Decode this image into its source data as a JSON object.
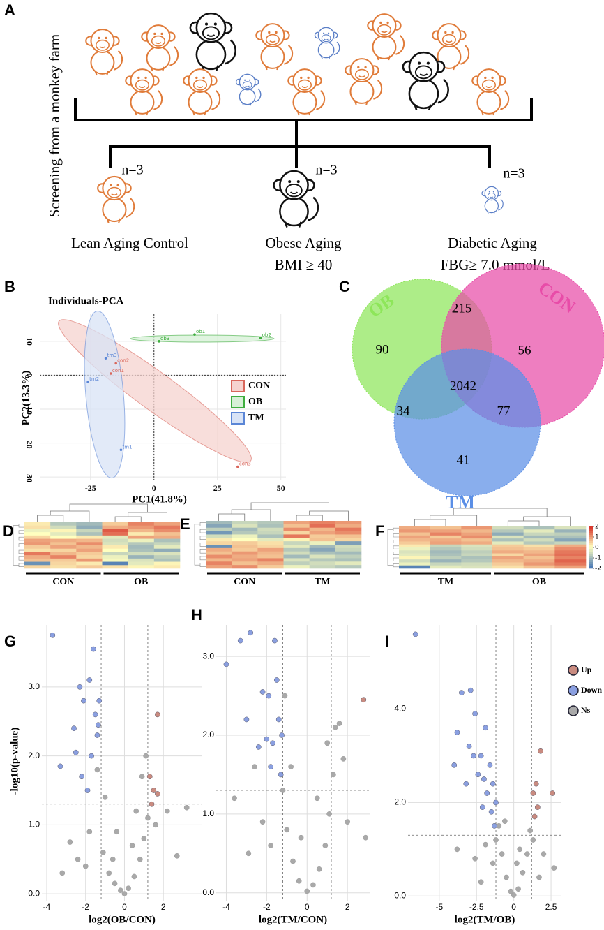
{
  "panel_labels": [
    "A",
    "B",
    "C",
    "D",
    "E",
    "F",
    "G",
    "H",
    "I"
  ],
  "diagram": {
    "side_label": "Screening from a monkey farm",
    "groups": [
      {
        "n": "n=3",
        "name": "Lean Aging Control"
      },
      {
        "n": "n=3",
        "name": "Obese Aging",
        "criterion": "BMI ≥ 40"
      },
      {
        "n": "n=3",
        "name": "Diabetic Aging",
        "criterion": "FBG≥ 7.0 mmol/L"
      }
    ]
  },
  "chart_data": [
    {
      "type": "scatter",
      "title": "Individuals-PCA",
      "x_label": "PC1(41.8%)",
      "y_label": "PC2(13.3%)",
      "xlim": [
        -45,
        52
      ],
      "ylim": [
        -31,
        18
      ],
      "xticks": [
        -25,
        0,
        25,
        50
      ],
      "yticks": [
        -30,
        -20,
        -10,
        0,
        10
      ],
      "grid": true,
      "series": [
        {
          "name": "CON",
          "color": "#d9665b",
          "fill": "#f6d3cf",
          "x": [
            -17,
            -15,
            33
          ],
          "y": [
            0.5,
            3.5,
            -27
          ],
          "point_labels": [
            "con1",
            "con2",
            "con3"
          ]
        },
        {
          "name": "OB",
          "color": "#3fae3f",
          "fill": "#d6f0d6",
          "x": [
            16,
            42,
            2
          ],
          "y": [
            12,
            11,
            10
          ],
          "point_labels": [
            "ob1",
            "ob2",
            "ob3"
          ]
        },
        {
          "name": "TM",
          "color": "#5b86d6",
          "fill": "#d8e3f6",
          "x": [
            -13,
            -26,
            -19
          ],
          "y": [
            -22,
            -2,
            5
          ],
          "point_labels": [
            "tm1",
            "tm2",
            "tm3"
          ]
        }
      ]
    },
    {
      "type": "venn",
      "sets": [
        {
          "name": "OB",
          "color": "#8ee65a"
        },
        {
          "name": "CON",
          "color": "#e84ca8"
        },
        {
          "name": "TM",
          "color": "#5b8fe6"
        }
      ],
      "values": [
        90,
        215,
        56,
        34,
        2042,
        77,
        41
      ]
    },
    {
      "type": "heatmap",
      "groups": [
        "CON",
        "OB"
      ],
      "clim": [
        -2,
        2
      ],
      "matrix": [
        [
          0.2,
          -0.8,
          -1.0,
          0.5,
          1.2,
          0.9
        ],
        [
          0.3,
          -0.5,
          -1.2,
          0.8,
          1.0,
          1.3
        ],
        [
          -0.2,
          0.1,
          -0.6,
          1.6,
          0.7,
          1.1
        ],
        [
          0.0,
          -0.3,
          -0.9,
          1.4,
          0.2,
          0.6
        ],
        [
          0.4,
          0.0,
          0.2,
          -0.3,
          0.9,
          0.8
        ],
        [
          0.9,
          0.8,
          0.7,
          -0.5,
          -0.2,
          -0.9
        ],
        [
          1.0,
          0.6,
          1.1,
          -0.4,
          -0.8,
          -0.6
        ],
        [
          0.5,
          0.9,
          0.7,
          0.2,
          -1.0,
          -0.3
        ],
        [
          0.3,
          0.4,
          0.9,
          0.0,
          -0.9,
          -1.2
        ],
        [
          1.3,
          0.7,
          0.5,
          -0.6,
          -0.5,
          -0.4
        ],
        [
          0.8,
          1.2,
          0.4,
          -0.2,
          -1.1,
          -0.7
        ],
        [
          0.6,
          0.5,
          1.0,
          -0.1,
          -0.4,
          -0.9
        ],
        [
          -1.6,
          0.4,
          0.2,
          -1.8,
          -0.3,
          0.1
        ],
        [
          0.4,
          0.3,
          0.5,
          0.3,
          0.1,
          0.2
        ]
      ]
    },
    {
      "type": "heatmap",
      "groups": [
        "CON",
        "TM"
      ],
      "clim": [
        -2,
        2
      ],
      "matrix": [
        [
          -1.0,
          -0.6,
          -0.8,
          0.9,
          1.2,
          1.0
        ],
        [
          -1.3,
          -0.4,
          -0.9,
          0.6,
          1.4,
          0.8
        ],
        [
          -0.7,
          -1.0,
          -0.5,
          1.1,
          0.7,
          1.3
        ],
        [
          -1.5,
          -0.8,
          -0.6,
          0.4,
          0.9,
          1.1
        ],
        [
          -0.5,
          -0.2,
          -0.9,
          1.3,
          0.5,
          0.6
        ],
        [
          0.2,
          0.0,
          -0.3,
          0.1,
          0.6,
          0.4
        ],
        [
          0.4,
          0.5,
          0.3,
          -0.6,
          -0.2,
          -1.4
        ],
        [
          -1.6,
          0.6,
          0.4,
          -0.3,
          -1.0,
          -0.5
        ],
        [
          0.8,
          0.5,
          0.9,
          -0.8,
          -1.3,
          -0.6
        ],
        [
          0.6,
          1.0,
          0.7,
          -0.5,
          -0.9,
          -1.0
        ],
        [
          1.1,
          0.8,
          0.6,
          -1.0,
          -0.4,
          -0.7
        ],
        [
          0.7,
          0.9,
          1.2,
          -0.4,
          -0.8,
          -0.9
        ],
        [
          1.2,
          0.6,
          0.8,
          -0.7,
          -0.5,
          -0.3
        ],
        [
          0.9,
          1.1,
          0.5,
          -0.2,
          -0.6,
          -0.8
        ]
      ]
    },
    {
      "type": "heatmap",
      "groups": [
        "TM",
        "OB"
      ],
      "clim": [
        -2,
        2
      ],
      "colorbar_ticks": [
        2,
        1,
        0,
        -1,
        -2
      ],
      "matrix": [
        [
          0.8,
          0.6,
          1.0,
          -0.5,
          -0.9,
          -0.4
        ],
        [
          1.0,
          0.9,
          0.7,
          -0.8,
          -0.3,
          -1.1
        ],
        [
          0.6,
          1.2,
          0.9,
          -1.2,
          -0.6,
          -0.7
        ],
        [
          0.9,
          0.5,
          1.1,
          -0.4,
          -1.0,
          -0.9
        ],
        [
          0.7,
          0.8,
          0.6,
          -0.9,
          -0.5,
          -1.3
        ],
        [
          0.5,
          0.9,
          0.8,
          -0.3,
          -0.8,
          -0.6
        ],
        [
          0.2,
          -0.6,
          -0.4,
          0.5,
          0.3,
          0.8
        ],
        [
          -0.2,
          -0.8,
          -0.5,
          0.6,
          0.5,
          1.1
        ],
        [
          -0.4,
          -1.0,
          -0.7,
          0.8,
          0.7,
          1.3
        ],
        [
          -0.3,
          -0.9,
          -0.6,
          0.4,
          0.9,
          1.4
        ],
        [
          0.1,
          -0.7,
          -0.9,
          0.9,
          0.6,
          1.2
        ],
        [
          -0.5,
          -1.1,
          -0.8,
          0.7,
          0.8,
          1.5
        ],
        [
          -0.2,
          -0.6,
          -0.5,
          0.5,
          1.0,
          1.3
        ],
        [
          -1.8,
          -0.3,
          -0.4,
          0.3,
          0.6,
          0.9
        ]
      ]
    },
    {
      "type": "volcano",
      "x_label": "log2(OB/CON)",
      "y_label": "-log10(p-value)",
      "xlim": [
        -4.25,
        4.0
      ],
      "ylim": [
        -0.1,
        3.9
      ],
      "xticks": [
        -4,
        -2,
        0,
        2
      ],
      "yticks": [
        {
          "value": 0,
          "label": "0.0"
        },
        {
          "value": 1,
          "label": "1.0"
        },
        {
          "value": 2,
          "label": "2.0"
        },
        {
          "value": 3,
          "label": "3.0"
        }
      ],
      "thresholds": {
        "x": [
          -1.2,
          1.2
        ],
        "y": 1.3
      },
      "grid": true,
      "series": [
        {
          "color": "#c98b80",
          "x": [
            1.7,
            1.3,
            1.5,
            1.7,
            1.4
          ],
          "y": [
            2.6,
            1.7,
            1.5,
            1.45,
            1.3
          ]
        },
        {
          "color": "#8a9fe0",
          "x": [
            -3.7,
            -3.3,
            -2.5,
            -2.3,
            -2.1,
            -1.9,
            -1.8,
            -1.6,
            -1.5,
            -1.4,
            -1.3,
            -2.2,
            -1.7,
            -2.6,
            -1.35
          ],
          "y": [
            3.75,
            1.85,
            2.05,
            3.0,
            2.8,
            1.5,
            3.1,
            3.55,
            2.6,
            2.3,
            2.8,
            1.7,
            2.0,
            2.4,
            2.45
          ]
        },
        {
          "color": "#a9a9a9",
          "x": [
            -3.2,
            -2.8,
            -2.4,
            -1.8,
            -1.4,
            -1.1,
            -0.8,
            -0.5,
            -0.2,
            0,
            0.2,
            0.5,
            0.8,
            1.0,
            1.2,
            0.9,
            1.1,
            1.6,
            2.2,
            3.2,
            2.7,
            -1.0,
            -0.4,
            0.4,
            -2.0,
            -0.6,
            0.6
          ],
          "y": [
            0.3,
            0.75,
            0.5,
            0.9,
            1.8,
            0.6,
            0.3,
            0.15,
            0.05,
            0,
            0.08,
            0.25,
            0.5,
            0.8,
            1.1,
            1.7,
            2.0,
            1.0,
            1.2,
            1.25,
            0.55,
            1.4,
            0.9,
            0.7,
            0.4,
            0.5,
            1.2
          ]
        }
      ]
    },
    {
      "type": "volcano",
      "x_label": "log2(TM/CON)",
      "xlim": [
        -4.5,
        3.1
      ],
      "ylim": [
        -0.1,
        3.4
      ],
      "xticks": [
        -4,
        -2,
        0,
        2
      ],
      "yticks": [
        {
          "value": 0,
          "label": "0.0"
        },
        {
          "value": 1,
          "label": "1.0"
        },
        {
          "value": 2,
          "label": "2.0"
        },
        {
          "value": 3,
          "label": "3.0"
        }
      ],
      "thresholds": {
        "x": [
          -1.2,
          1.2
        ],
        "y": 1.3
      },
      "grid": true,
      "series": [
        {
          "color": "#c98b80",
          "x": [
            2.8
          ],
          "y": [
            2.45
          ]
        },
        {
          "color": "#8a9fe0",
          "x": [
            -4.0,
            -3.3,
            -3.0,
            -2.8,
            -2.2,
            -2.0,
            -1.9,
            -1.7,
            -1.6,
            -1.5,
            -1.8,
            -1.4,
            -1.3,
            -2.4,
            -1.25
          ],
          "y": [
            2.9,
            3.2,
            2.2,
            3.3,
            2.55,
            1.95,
            2.5,
            1.9,
            3.2,
            2.7,
            1.6,
            2.2,
            1.5,
            1.85,
            2.0
          ]
        },
        {
          "color": "#a9a9a9",
          "x": [
            -3.6,
            -2.6,
            -2.2,
            -1.8,
            -1.2,
            -1.0,
            -0.7,
            -0.4,
            0,
            0.3,
            0.6,
            0.9,
            1.1,
            1.3,
            1.4,
            1.6,
            1.8,
            2.0,
            2.9,
            -1.1,
            -0.8,
            0.5,
            -0.3,
            1.0,
            -2.9
          ],
          "y": [
            1.2,
            1.6,
            0.9,
            0.6,
            1.3,
            0.8,
            0.4,
            0.15,
            0.02,
            0.1,
            0.3,
            0.6,
            1.0,
            1.5,
            2.1,
            2.15,
            1.7,
            0.9,
            0.7,
            2.5,
            1.6,
            1.2,
            0.7,
            1.9,
            0.5
          ]
        }
      ]
    },
    {
      "type": "volcano",
      "x_label": "log2(TM/OB)",
      "legend": true,
      "xlim": [
        -7.1,
        3.2
      ],
      "ylim": [
        -0.1,
        5.8
      ],
      "xticks": [
        -5,
        -2.5,
        0,
        2.5
      ],
      "yticks": [
        {
          "value": 0,
          "label": "0.0"
        },
        {
          "value": 2,
          "label": "2.0"
        },
        {
          "value": 4,
          "label": "4.0"
        }
      ],
      "thresholds": {
        "x": [
          -1.2,
          1.2
        ],
        "y": 1.3
      },
      "grid": true,
      "series": [
        {
          "name": "Up",
          "color": "#c98b80",
          "x": [
            1.8,
            1.5,
            1.3,
            1.6,
            1.4,
            2.6
          ],
          "y": [
            3.1,
            2.4,
            2.2,
            1.9,
            1.7,
            2.2
          ]
        },
        {
          "name": "Down",
          "color": "#8a9fe0",
          "x": [
            -6.6,
            -3.5,
            -2.9,
            -3.8,
            -3.0,
            -2.6,
            -2.2,
            -2.0,
            -1.8,
            -1.6,
            -1.5,
            -1.3,
            -2.4,
            -3.2,
            -1.9,
            -1.2,
            -2.7,
            -4.0,
            -1.4,
            -2.1
          ],
          "y": [
            5.6,
            4.35,
            4.4,
            3.5,
            3.2,
            3.9,
            3.0,
            2.5,
            2.2,
            2.8,
            1.8,
            1.5,
            2.6,
            2.4,
            3.6,
            2.0,
            3.0,
            2.8,
            2.4,
            1.9
          ]
        },
        {
          "name": "Ns",
          "color": "#a9a9a9",
          "x": [
            -3.8,
            -2.6,
            -1.9,
            -1.4,
            -1.0,
            -0.8,
            -0.5,
            -0.2,
            0,
            0.3,
            0.6,
            0.9,
            1.1,
            1.3,
            2.0,
            2.7,
            -1.2,
            0.4,
            -0.6,
            0.2,
            -2.2,
            1.7
          ],
          "y": [
            1.0,
            0.8,
            1.1,
            0.7,
            1.5,
            0.9,
            0.4,
            0.1,
            0.02,
            0.15,
            0.5,
            0.9,
            1.4,
            1.2,
            0.9,
            0.6,
            1.2,
            1.0,
            1.6,
            0.7,
            0.3,
            0.4
          ]
        }
      ]
    }
  ]
}
